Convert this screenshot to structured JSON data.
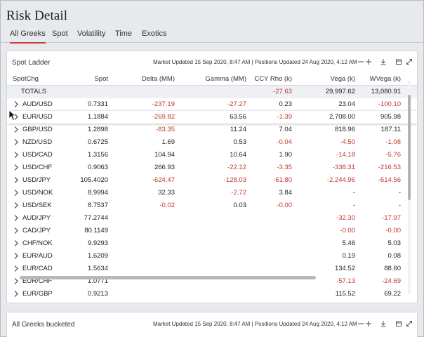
{
  "app": {
    "title": "Risk Detail"
  },
  "tabs": [
    {
      "label": "All Greeks",
      "active": true
    },
    {
      "label": "Spot",
      "active": false
    },
    {
      "label": "Volatility",
      "active": false
    },
    {
      "label": "Time",
      "active": false
    },
    {
      "label": "Exotics",
      "active": false
    }
  ],
  "panel": {
    "title": "Spot Ladder",
    "meta": "Market Updated 15 Sep 2020, 8:47 AM | Positions Updated 24 Aug 2020, 4:12 AM",
    "controls": [
      "minimize-icon",
      "add-icon",
      "download-icon",
      "print-icon",
      "expand-icon"
    ]
  },
  "panel2": {
    "title": "All Greeks bucketed",
    "meta": "Market Updated 15 Sep 2020, 8:47 AM | Positions Updated 24 Aug 2020, 4:12 AM"
  },
  "table": {
    "columns": [
      "SpotChg",
      "Spot",
      "Delta (MM)",
      "Gamma (MM)",
      "CCY Rho (k)",
      "Vega (k)",
      "WVega (k)"
    ],
    "totals": {
      "label": "TOTALS",
      "values": [
        "",
        "",
        "",
        "-27.63",
        "29,997.62",
        "13,080.91"
      ]
    },
    "rows": [
      {
        "name": "AUD/USD",
        "values": [
          "0.7331",
          "-237.19",
          "-27.27",
          "0.23",
          "23.04",
          "-100.10"
        ]
      },
      {
        "name": "EUR/USD",
        "values": [
          "1.1884",
          "-269.82",
          "63.56",
          "-1.39",
          "2,708.00",
          "905.98"
        ]
      },
      {
        "name": "GBP/USD",
        "values": [
          "1.2898",
          "-83.35",
          "11.24",
          "7.04",
          "818.96",
          "187.11"
        ]
      },
      {
        "name": "NZD/USD",
        "values": [
          "0.6725",
          "1.69",
          "0.53",
          "-0.04",
          "-4.50",
          "-1.08"
        ]
      },
      {
        "name": "USD/CAD",
        "values": [
          "1.3156",
          "104.94",
          "10.64",
          "1.90",
          "-14.18",
          "-5.76"
        ]
      },
      {
        "name": "USD/CHF",
        "values": [
          "0.9063",
          "266.93",
          "-22.12",
          "-3.35",
          "-338.31",
          "-216.53"
        ]
      },
      {
        "name": "USD/JPY",
        "values": [
          "105.4020",
          "-624.47",
          "-128.03",
          "-61.80",
          "-2,244.96",
          "-614.56"
        ]
      },
      {
        "name": "USD/NOK",
        "values": [
          "8.9994",
          "32.33",
          "-2.72",
          "3.84",
          "-",
          "-"
        ]
      },
      {
        "name": "USD/SEK",
        "values": [
          "8.7537",
          "-0.02",
          "0.03",
          "-0.00",
          "-",
          "-"
        ]
      },
      {
        "name": "AUD/JPY",
        "values": [
          "77.2744",
          "",
          "",
          "",
          "-32.30",
          "-17.97"
        ]
      },
      {
        "name": "CAD/JPY",
        "values": [
          "80.1149",
          "",
          "",
          "",
          "-0.00",
          "-0.00"
        ]
      },
      {
        "name": "CHF/NOK",
        "values": [
          "9.9293",
          "",
          "",
          "",
          "5.46",
          "5.03"
        ]
      },
      {
        "name": "EUR/AUD",
        "values": [
          "1.6209",
          "",
          "",
          "",
          "0.19",
          "0.08"
        ]
      },
      {
        "name": "EUR/CAD",
        "values": [
          "1.5634",
          "",
          "",
          "",
          "134.52",
          "88.60"
        ]
      },
      {
        "name": "EUR/CHF",
        "values": [
          "1.0771",
          "",
          "",
          "",
          "-57.13",
          "-24.69"
        ]
      },
      {
        "name": "EUR/GBP",
        "values": [
          "0.9213",
          "",
          "",
          "",
          "115.52",
          "69.22"
        ]
      }
    ]
  },
  "colors": {
    "accent": "#c4403a",
    "negative": "#c0392b"
  }
}
